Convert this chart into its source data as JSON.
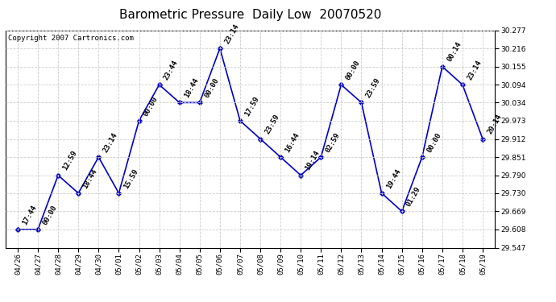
{
  "title": "Barometric Pressure  Daily Low  20070520",
  "copyright": "Copyright 2007 Cartronics.com",
  "x_labels": [
    "04/26",
    "04/27",
    "04/28",
    "04/29",
    "04/30",
    "05/01",
    "05/02",
    "05/03",
    "05/04",
    "05/05",
    "05/06",
    "05/07",
    "05/08",
    "05/09",
    "05/10",
    "05/11",
    "05/12",
    "05/13",
    "05/14",
    "05/15",
    "05/16",
    "05/17",
    "05/18",
    "05/19"
  ],
  "y_values": [
    29.608,
    29.608,
    29.79,
    29.73,
    29.851,
    29.73,
    29.973,
    30.094,
    30.034,
    30.034,
    30.216,
    29.973,
    29.912,
    29.851,
    29.79,
    29.851,
    30.094,
    30.034,
    29.73,
    29.669,
    29.851,
    30.155,
    30.094,
    29.912
  ],
  "point_labels": [
    "17:44",
    "00:00",
    "12:59",
    "18:44",
    "23:14",
    "15:59",
    "00:00",
    "23:44",
    "18:44",
    "00:00",
    "23:14",
    "17:59",
    "23:59",
    "16:44",
    "19:14",
    "02:59",
    "00:00",
    "23:59",
    "19:44",
    "01:29",
    "00:00",
    "00:14",
    "23:14",
    "20:14"
  ],
  "y_min": 29.547,
  "y_max": 30.277,
  "y_ticks": [
    29.547,
    29.608,
    29.669,
    29.73,
    29.79,
    29.851,
    29.912,
    29.973,
    30.034,
    30.094,
    30.155,
    30.216,
    30.277
  ],
  "line_color": "#0000CC",
  "marker_color": "#0000CC",
  "bg_color": "#FFFFFF",
  "grid_color": "#CCCCCC",
  "title_fontsize": 11,
  "label_fontsize": 6.5,
  "tick_fontsize": 6.5,
  "copyright_fontsize": 6.5
}
